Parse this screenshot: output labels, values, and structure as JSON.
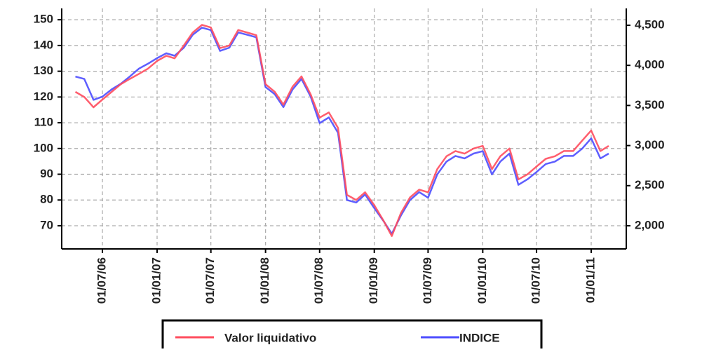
{
  "chart_data": {
    "type": "line",
    "x": [
      "2006-04-01",
      "2006-05-01",
      "2006-06-01",
      "2006-07-01",
      "2006-08-01",
      "2006-09-01",
      "2006-10-01",
      "2006-11-01",
      "2006-12-01",
      "2007-01-01",
      "2007-02-01",
      "2007-03-01",
      "2007-04-01",
      "2007-05-01",
      "2007-06-01",
      "2007-07-01",
      "2007-08-01",
      "2007-09-01",
      "2007-10-01",
      "2007-11-01",
      "2007-12-01",
      "2008-01-01",
      "2008-02-01",
      "2008-03-01",
      "2008-04-01",
      "2008-05-01",
      "2008-06-01",
      "2008-07-01",
      "2008-08-01",
      "2008-09-01",
      "2008-10-01",
      "2008-11-01",
      "2008-12-01",
      "2009-01-01",
      "2009-02-01",
      "2009-03-01",
      "2009-04-01",
      "2009-05-01",
      "2009-06-01",
      "2009-07-01",
      "2009-08-01",
      "2009-09-01",
      "2009-10-01",
      "2009-11-01",
      "2009-12-01",
      "2010-01-01",
      "2010-02-01",
      "2010-03-01",
      "2010-04-01",
      "2010-05-01",
      "2010-06-01",
      "2010-07-01",
      "2010-08-01",
      "2010-09-01",
      "2010-10-01",
      "2010-11-01",
      "2010-12-01",
      "2011-01-01",
      "2011-02-01",
      "2011-03-01"
    ],
    "series": [
      {
        "name": "Valor liquidativo",
        "color": "#ff4d5e",
        "axis": "y",
        "values": [
          122,
          120,
          116,
          119,
          122,
          125,
          127,
          129,
          131,
          134,
          136,
          135,
          140,
          145,
          148,
          147,
          139,
          140,
          146,
          145,
          144,
          125,
          122,
          117,
          124,
          128,
          121,
          112,
          114,
          108,
          82,
          80,
          83,
          78,
          72,
          66,
          75,
          81,
          84,
          83,
          92,
          97,
          99,
          98,
          100,
          101,
          92,
          97,
          100,
          88,
          90,
          93,
          96,
          97,
          99,
          99,
          103,
          107,
          99,
          101
        ]
      },
      {
        "name": "INDICE",
        "color": "#4d4dff",
        "axis": "y2",
        "values": [
          3860,
          3830,
          3570,
          3610,
          3700,
          3770,
          3860,
          3960,
          4020,
          4090,
          4150,
          4120,
          4220,
          4380,
          4470,
          4440,
          4180,
          4220,
          4410,
          4380,
          4350,
          3730,
          3640,
          3480,
          3700,
          3830,
          3610,
          3280,
          3350,
          3160,
          2320,
          2290,
          2390,
          2220,
          2060,
          1900,
          2130,
          2320,
          2420,
          2350,
          2640,
          2800,
          2870,
          2840,
          2900,
          2930,
          2640,
          2800,
          2900,
          2510,
          2580,
          2670,
          2770,
          2800,
          2870,
          2870,
          2960,
          3090,
          2840,
          2900
        ]
      }
    ],
    "xlim": [
      "2006-02-14",
      "2011-04-29"
    ],
    "xticks": [
      {
        "value": "2006-07-01",
        "label": "01/07/06"
      },
      {
        "value": "2007-01-01",
        "label": "01/01/07"
      },
      {
        "value": "2007-07-01",
        "label": "01/07/07"
      },
      {
        "value": "2008-01-01",
        "label": "01/01/08"
      },
      {
        "value": "2008-07-01",
        "label": "01/07/08"
      },
      {
        "value": "2009-01-01",
        "label": "01/01/09"
      },
      {
        "value": "2009-07-01",
        "label": "01/07/09"
      },
      {
        "value": "2010-01-01",
        "label": "01/01/10"
      },
      {
        "value": "2010-07-01",
        "label": "01/07/10"
      },
      {
        "value": "2011-01-01",
        "label": "01/01/11"
      }
    ],
    "ylim": [
      61,
      154.4
    ],
    "yticks": [
      70,
      80,
      90,
      100,
      110,
      120,
      130,
      140,
      150
    ],
    "y2lim": [
      1711,
      4710
    ],
    "y2ticks": [
      {
        "value": 2000,
        "label": "2,000"
      },
      {
        "value": 2500,
        "label": "2,500"
      },
      {
        "value": 3000,
        "label": "3,000"
      },
      {
        "value": 3500,
        "label": "3,500"
      },
      {
        "value": 4000,
        "label": "4,000"
      },
      {
        "value": 4500,
        "label": "4,500"
      }
    ],
    "grid": true,
    "legend": "bottom"
  }
}
